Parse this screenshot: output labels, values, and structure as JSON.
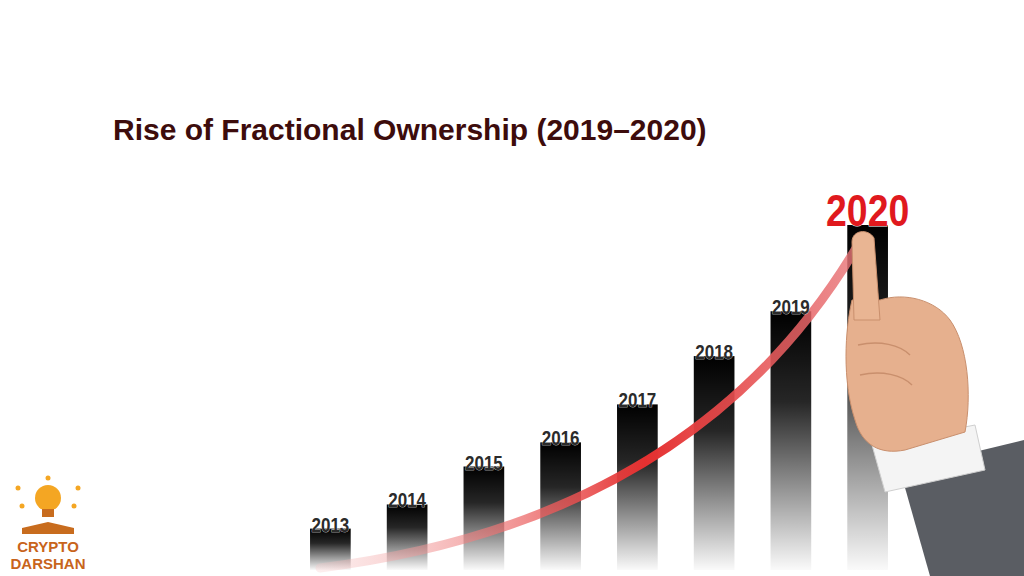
{
  "chart_data": {
    "type": "bar",
    "title": "Rise of Fractional Ownership (2019–2020)",
    "categories": [
      "2013",
      "2014",
      "2015",
      "2016",
      "2017",
      "2018",
      "2019",
      "2020"
    ],
    "values": [
      12,
      19,
      30,
      37,
      48,
      62,
      75,
      100
    ],
    "color": "#000000",
    "ylim": [
      0,
      100
    ],
    "tick_labels": "x",
    "annotations": [
      "CRYPTO",
      "DARSHAN"
    ]
  }
}
